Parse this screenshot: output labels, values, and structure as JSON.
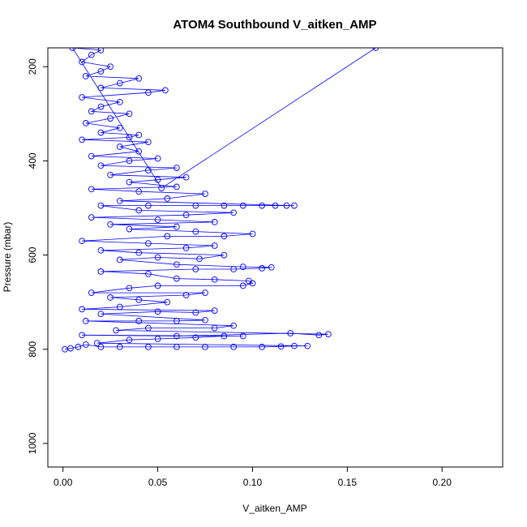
{
  "chart_data": {
    "type": "scatter",
    "title": "ATOM4 Southbound V_aitken_AMP",
    "xlabel": "V_aitken_AMP",
    "ylabel": "Pressure (mbar)",
    "xlim": [
      -0.008,
      0.232
    ],
    "ylim": [
      1050,
      160
    ],
    "y_reversed": true,
    "grid": false,
    "legend": "none",
    "color": "#0000ff",
    "marker": "open-circle",
    "connect_points": true,
    "x_ticks": [
      "0.00",
      "0.05",
      "0.10",
      "0.15",
      "0.20"
    ],
    "x_tick_values": [
      0,
      0.05,
      0.1,
      0.15,
      0.2
    ],
    "y_ticks": [
      "200",
      "400",
      "600",
      "800",
      "1000"
    ],
    "y_tick_values": [
      200,
      400,
      600,
      800,
      1000
    ],
    "series": [
      {
        "points": [
          [
            0.001,
            800
          ],
          [
            0.004,
            798
          ],
          [
            0.008,
            795
          ],
          [
            0.012,
            790
          ],
          [
            0.02,
            795
          ],
          [
            0.03,
            795
          ],
          [
            0.045,
            795
          ],
          [
            0.06,
            795
          ],
          [
            0.075,
            795
          ],
          [
            0.09,
            795
          ],
          [
            0.105,
            795
          ],
          [
            0.115,
            794
          ],
          [
            0.122,
            793
          ],
          [
            0.129,
            793
          ],
          [
            0.018,
            787
          ],
          [
            0.035,
            780
          ],
          [
            0.05,
            778
          ],
          [
            0.07,
            775
          ],
          [
            0.085,
            772
          ],
          [
            0.095,
            772
          ],
          [
            0.01,
            770
          ],
          [
            0.06,
            772
          ],
          [
            0.12,
            766
          ],
          [
            0.135,
            770
          ],
          [
            0.14,
            768
          ],
          [
            0.028,
            760
          ],
          [
            0.045,
            755
          ],
          [
            0.08,
            755
          ],
          [
            0.09,
            750
          ],
          [
            0.012,
            740
          ],
          [
            0.04,
            740
          ],
          [
            0.06,
            740
          ],
          [
            0.075,
            738
          ],
          [
            0.02,
            725
          ],
          [
            0.05,
            720
          ],
          [
            0.07,
            722
          ],
          [
            0.08,
            718
          ],
          [
            0.01,
            715
          ],
          [
            0.03,
            710
          ],
          [
            0.055,
            700
          ],
          [
            0.04,
            695
          ],
          [
            0.025,
            690
          ],
          [
            0.065,
            685
          ],
          [
            0.075,
            680
          ],
          [
            0.015,
            680
          ],
          [
            0.035,
            670
          ],
          [
            0.05,
            665
          ],
          [
            0.095,
            665
          ],
          [
            0.1,
            660
          ],
          [
            0.098,
            655
          ],
          [
            0.08,
            652
          ],
          [
            0.06,
            650
          ],
          [
            0.045,
            640
          ],
          [
            0.02,
            635
          ],
          [
            0.07,
            630
          ],
          [
            0.09,
            630
          ],
          [
            0.105,
            628
          ],
          [
            0.11,
            626
          ],
          [
            0.095,
            625
          ],
          [
            0.06,
            620
          ],
          [
            0.03,
            610
          ],
          [
            0.05,
            605
          ],
          [
            0.072,
            608
          ],
          [
            0.085,
            600
          ],
          [
            0.04,
            595
          ],
          [
            0.02,
            590
          ],
          [
            0.065,
            585
          ],
          [
            0.08,
            580
          ],
          [
            0.045,
            575
          ],
          [
            0.01,
            570
          ],
          [
            0.055,
            560
          ],
          [
            0.085,
            560
          ],
          [
            0.1,
            555
          ],
          [
            0.07,
            550
          ],
          [
            0.035,
            545
          ],
          [
            0.06,
            540
          ],
          [
            0.025,
            535
          ],
          [
            0.08,
            530
          ],
          [
            0.05,
            525
          ],
          [
            0.015,
            520
          ],
          [
            0.065,
            515
          ],
          [
            0.09,
            510
          ],
          [
            0.04,
            505
          ],
          [
            0.02,
            495
          ],
          [
            0.045,
            495
          ],
          [
            0.07,
            495
          ],
          [
            0.085,
            495
          ],
          [
            0.095,
            495
          ],
          [
            0.105,
            495
          ],
          [
            0.112,
            495
          ],
          [
            0.118,
            495
          ],
          [
            0.122,
            495
          ],
          [
            0.03,
            485
          ],
          [
            0.055,
            480
          ],
          [
            0.075,
            470
          ],
          [
            0.04,
            465
          ],
          [
            0.015,
            460
          ],
          [
            0.06,
            455
          ],
          [
            0.035,
            445
          ],
          [
            0.05,
            440
          ],
          [
            0.065,
            435
          ],
          [
            0.025,
            430
          ],
          [
            0.045,
            420
          ],
          [
            0.06,
            415
          ],
          [
            0.02,
            410
          ],
          [
            0.035,
            400
          ],
          [
            0.05,
            395
          ],
          [
            0.015,
            390
          ],
          [
            0.04,
            380
          ],
          [
            0.03,
            370
          ],
          [
            0.045,
            360
          ],
          [
            0.01,
            355
          ],
          [
            0.035,
            350
          ],
          [
            0.04,
            345
          ],
          [
            0.02,
            340
          ],
          [
            0.03,
            330
          ],
          [
            0.012,
            320
          ],
          [
            0.025,
            310
          ],
          [
            0.035,
            300
          ],
          [
            0.015,
            295
          ],
          [
            0.02,
            285
          ],
          [
            0.03,
            275
          ],
          [
            0.01,
            265
          ],
          [
            0.045,
            255
          ],
          [
            0.054,
            250
          ],
          [
            0.02,
            245
          ],
          [
            0.03,
            235
          ],
          [
            0.04,
            225
          ],
          [
            0.012,
            220
          ],
          [
            0.02,
            210
          ],
          [
            0.025,
            200
          ],
          [
            0.01,
            190
          ],
          [
            0.015,
            175
          ],
          [
            0.02,
            165
          ],
          [
            0.005,
            160
          ],
          [
            0.052,
            458
          ],
          [
            0.165,
            160
          ]
        ]
      }
    ]
  }
}
